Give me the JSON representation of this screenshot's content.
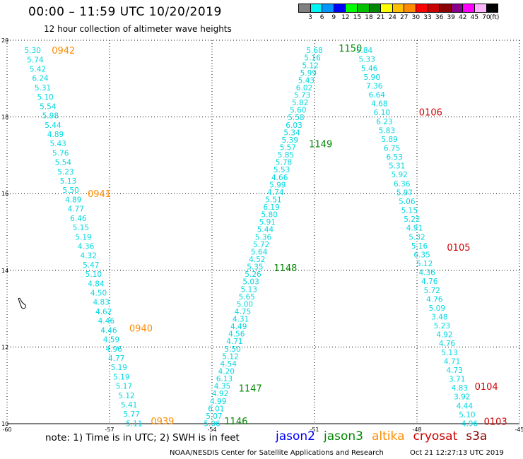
{
  "header": {
    "title": "00:00 – 11:59 UTC 10/20/2019",
    "subtitle": "12 hour collection of altimeter wave heights"
  },
  "color_scale": {
    "labels": [
      "3",
      "6",
      "9",
      "12",
      "15",
      "18",
      "21",
      "24",
      "27",
      "30",
      "33",
      "36",
      "39",
      "42",
      "45",
      "70",
      "(ft)"
    ],
    "colors": [
      "#808080",
      "#00f5f5",
      "#0095ff",
      "#0000ff",
      "#00ff00",
      "#00c000",
      "#008800",
      "#ffff00",
      "#ffc000",
      "#ff8c00",
      "#ff0000",
      "#c80000",
      "#8b0000",
      "#8b008b",
      "#ff00ff",
      "#ffb4ff",
      "#000000"
    ]
  },
  "chart_data": {
    "type": "scatter",
    "title": "00:00 – 11:59 UTC 10/20/2019",
    "subtitle": "12 hour collection of altimeter wave heights",
    "xlabel": "",
    "ylabel": "",
    "xlim": [
      -60,
      -45
    ],
    "ylim": [
      10,
      20
    ],
    "x_ticks": [
      -60,
      -57,
      -54,
      -51,
      -48,
      -45
    ],
    "x_tick_labels": [
      "-60",
      "-57",
      "-54",
      "-51",
      "-48",
      "-45"
    ],
    "y_ticks": [
      10,
      12,
      14,
      16,
      18,
      20
    ],
    "y_tick_labels": [
      "10",
      "12",
      "14",
      "16",
      "18",
      "20"
    ],
    "grid": true,
    "point_color": "#00d8e0",
    "tracks": [
      {
        "start": [
          -59.25,
          19.74
        ],
        "end": [
          -56.28,
          10.01
        ],
        "values": [
          "5.30",
          "5.74",
          "5.42",
          "6.24",
          "5.31",
          "5.10",
          "5.54",
          "5.98",
          "5.44",
          "4.89",
          "5.43",
          "5.76",
          "5.54",
          "5.23",
          "5.13",
          "5.50",
          "4.89",
          "4.77",
          "6.46",
          "5.15",
          "5.19",
          "4.36",
          "4.32",
          "5.47",
          "5.10",
          "4.84",
          "4.50",
          "4.83",
          "4.62",
          "4.46",
          "4.46",
          "4.59",
          "4.96",
          "4.77",
          "5.19",
          "5.19",
          "5.17",
          "5.12",
          "5.41",
          "5.77",
          "5.11"
        ]
      },
      {
        "start": [
          -54.0,
          10.01
        ],
        "end": [
          -51.0,
          19.74
        ],
        "values": [
          "5.06",
          "5.07",
          "6.01",
          "4.99",
          "4.92",
          "4.35",
          "6.13",
          "4.20",
          "4.54",
          "5.12",
          "5.50",
          "4.71",
          "4.56",
          "4.49",
          "4.31",
          "4.75",
          "5.00",
          "5.65",
          "5.13",
          "5.03",
          "5.26",
          "5.35",
          "4.52",
          "5.64",
          "5.72",
          "5.36",
          "5.44",
          "5.91",
          "5.80",
          "6.19",
          "5.51",
          "4.74",
          "5.99",
          "4.66",
          "5.53",
          "5.78",
          "5.85",
          "5.57",
          "5.39",
          "5.34",
          "6.03",
          "5.58",
          "5.60",
          "5.82",
          "5.73",
          "6.02",
          "5.43",
          "5.99",
          "5.12",
          "5.16",
          "5.68"
        ]
      },
      {
        "start": [
          -49.54,
          19.74
        ],
        "end": [
          -46.46,
          10.01
        ],
        "values": [
          "5.84",
          "5.33",
          "5.46",
          "5.90",
          "7.36",
          "6.64",
          "4.68",
          "6.10",
          "6.23",
          "5.83",
          "5.89",
          "6.75",
          "6.53",
          "5.31",
          "5.92",
          "6.36",
          "5.97",
          "5.06",
          "5.15",
          "5.22",
          "4.91",
          "5.32",
          "5.16",
          "6.35",
          "5.12",
          "4.36",
          "4.76",
          "5.72",
          "4.76",
          "5.09",
          "3.48",
          "5.23",
          "4.92",
          "4.76",
          "5.13",
          "4.71",
          "4.73",
          "3.71",
          "4.83",
          "3.92",
          "4.44",
          "5.10",
          "4.96"
        ]
      }
    ],
    "pass_labels": [
      {
        "text": "0942",
        "lon": -58.35,
        "lat": 19.74,
        "satellite": "altika"
      },
      {
        "text": "0941",
        "lon": -57.3,
        "lat": 16.0,
        "satellite": "altika"
      },
      {
        "text": "0940",
        "lon": -56.08,
        "lat": 12.5,
        "satellite": "altika"
      },
      {
        "text": "0939",
        "lon": -55.45,
        "lat": 10.07,
        "satellite": "altika"
      },
      {
        "text": "1146",
        "lon": -53.3,
        "lat": 10.07,
        "satellite": "jason3"
      },
      {
        "text": "1147",
        "lon": -52.88,
        "lat": 10.93,
        "satellite": "jason3"
      },
      {
        "text": "1148",
        "lon": -51.85,
        "lat": 14.07,
        "satellite": "jason3"
      },
      {
        "text": "1149",
        "lon": -50.82,
        "lat": 17.3,
        "satellite": "jason3"
      },
      {
        "text": "1150",
        "lon": -49.95,
        "lat": 19.8,
        "satellite": "jason3"
      },
      {
        "text": "0106",
        "lon": -47.6,
        "lat": 18.13,
        "satellite": "cryosat"
      },
      {
        "text": "0105",
        "lon": -46.78,
        "lat": 14.6,
        "satellite": "cryosat"
      },
      {
        "text": "0104",
        "lon": -45.97,
        "lat": 10.98,
        "satellite": "cryosat"
      },
      {
        "text": "0103",
        "lon": -45.7,
        "lat": 10.06,
        "satellite": "cryosat"
      }
    ]
  },
  "legend": {
    "items": [
      {
        "label": "jason2",
        "color": "#0000ff"
      },
      {
        "label": "jason3",
        "color": "#008800"
      },
      {
        "label": "altika",
        "color": "#ff8c00"
      },
      {
        "label": "cryosat",
        "color": "#cc0000"
      },
      {
        "label": "s3a",
        "color": "#8b0000"
      }
    ]
  },
  "footer": {
    "note": "note: 1) Time is in UTC; 2) SWH is in feet",
    "credit": "NOAA/NESDIS Center for Satellite Applications and Research",
    "timestamp": "Oct 21 12:27:13 UTC 2019"
  }
}
